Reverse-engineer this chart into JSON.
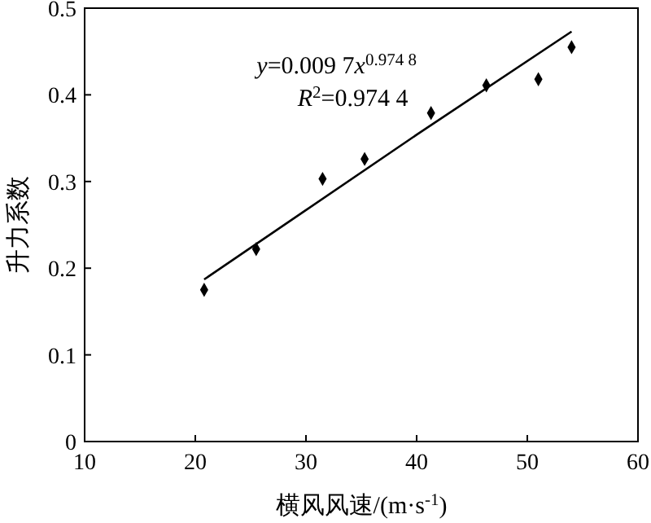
{
  "chart_data": {
    "type": "scatter",
    "xlabel": "横风风速/(m·s$^{-1}$)",
    "ylabel": "升力系数",
    "xlim": [
      10,
      60
    ],
    "xticks": [
      10,
      20,
      30,
      40,
      50,
      60
    ],
    "ylim": [
      0,
      0.5
    ],
    "yticks": [
      0,
      0.1,
      0.2,
      0.3,
      0.4,
      0.5
    ],
    "grid": false,
    "marker": "diamond",
    "annotations": [
      "y=0.009 7x$^{0.974 8}$",
      "R$^{2}$=0.974 4"
    ],
    "series": [
      {
        "color": "#000000",
        "x": [
          20.8,
          25.5,
          31.5,
          35.3,
          41.3,
          46.3,
          51,
          54
        ],
        "values": [
          0.175,
          0.222,
          0.303,
          0.326,
          0.379,
          0.411,
          0.418,
          0.455
        ]
      },
      {
        "type": "line",
        "color": "#000000",
        "marker": "none",
        "line_style": "solid",
        "x": [
          20.8,
          30,
          40,
          54
        ],
        "values": [
          0.187,
          0.267,
          0.354,
          0.473
        ]
      }
    ]
  }
}
